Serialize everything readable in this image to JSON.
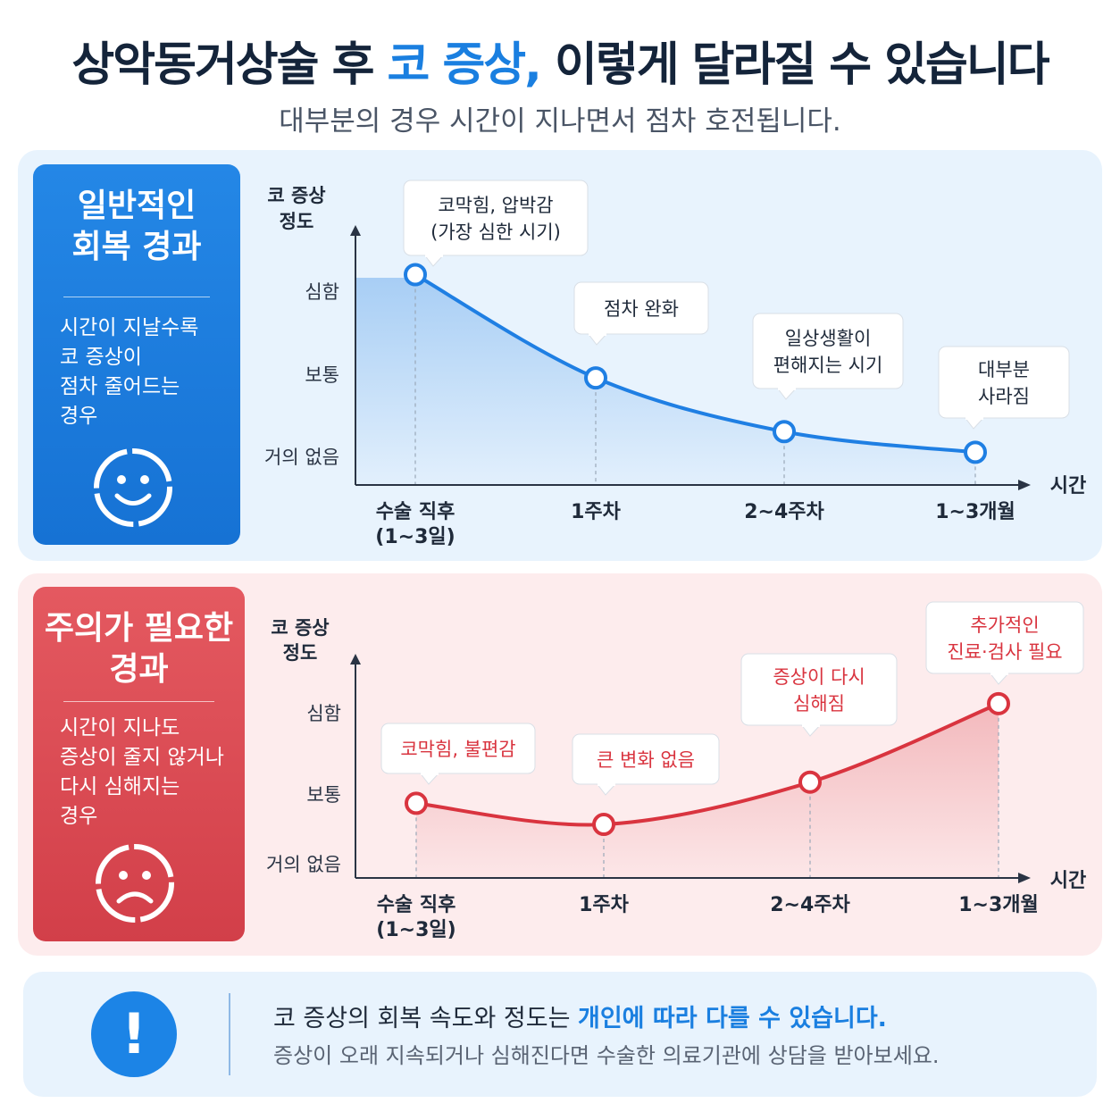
{
  "header": {
    "title_part1": "상악동거상술 후 ",
    "title_accent": "코 증상,",
    "title_part2": " 이렇게 달라질 수 있습니다",
    "subtitle": "대부분의 경우 시간이 지나면서 점차 호전됩니다."
  },
  "normal_panel": {
    "title_lines": [
      "일반적인",
      "회복 경과"
    ],
    "desc_lines": [
      "시간이 지날수록",
      "코 증상이",
      "점차 줄어드는",
      "경우"
    ],
    "face_icon": "smiley-face-icon",
    "accent_color": "#1f7fe3"
  },
  "caution_panel": {
    "title_lines": [
      "주의가 필요한",
      "경과"
    ],
    "desc_lines": [
      "시간이 지나도",
      "증상이 줄지 않거나",
      "다시 심해지는",
      "경우"
    ],
    "face_icon": "sad-face-icon",
    "accent_color": "#d9343f"
  },
  "chart_data": [
    {
      "type": "line",
      "ylabel_lines": [
        "코 증상",
        "정도"
      ],
      "xlabel": "시간",
      "y_levels": [
        "거의 없음",
        "보통",
        "심함"
      ],
      "x_categories": [
        {
          "lines": [
            "수술 직후",
            "(1~3일)"
          ]
        },
        {
          "lines": [
            "1주차"
          ]
        },
        {
          "lines": [
            "2~4주차"
          ]
        },
        {
          "lines": [
            "1~3개월"
          ]
        }
      ],
      "ylim": [
        0,
        2
      ],
      "series": [
        {
          "values": [
            2.2,
            0.95,
            0.3,
            0.05
          ],
          "color": "#1f7fe3"
        }
      ],
      "annotations": [
        {
          "lines": [
            "코막힘, 압박감",
            "(가장 심한 시기)"
          ]
        },
        {
          "lines": [
            "점차 완화"
          ]
        },
        {
          "lines": [
            "일상생활이",
            "편해지는 시기"
          ]
        },
        {
          "lines": [
            "대부분",
            "사라짐"
          ]
        }
      ],
      "grid": false
    },
    {
      "type": "line",
      "ylabel_lines": [
        "코 증상",
        "정도"
      ],
      "xlabel": "시간",
      "y_levels": [
        "거의 없음",
        "보통",
        "심함"
      ],
      "x_categories": [
        {
          "lines": [
            "수술 직후",
            "(1~3일)"
          ]
        },
        {
          "lines": [
            "1주차"
          ]
        },
        {
          "lines": [
            "2~4주차"
          ]
        },
        {
          "lines": [
            "1~3개월"
          ]
        }
      ],
      "ylim": [
        0,
        2
      ],
      "series": [
        {
          "values": [
            0.8,
            0.52,
            1.08,
            2.12
          ],
          "color": "#d9343f"
        }
      ],
      "annotations": [
        {
          "lines": [
            "코막힘, 불편감"
          ]
        },
        {
          "lines": [
            "큰 변화 없음"
          ]
        },
        {
          "lines": [
            "증상이 다시",
            "심해짐"
          ]
        },
        {
          "lines": [
            "추가적인",
            "진료·검사 필요"
          ]
        }
      ],
      "grid": false
    }
  ],
  "notice": {
    "icon": "exclamation-icon",
    "line1_text": "코 증상의 회복 속도와 정도는 ",
    "line1_highlight": "개인에 따라 다를 수 있습니다.",
    "line2": "증상이 오래 지속되거나 심해진다면 수술한 의료기관에 상담을 받아보세요."
  }
}
